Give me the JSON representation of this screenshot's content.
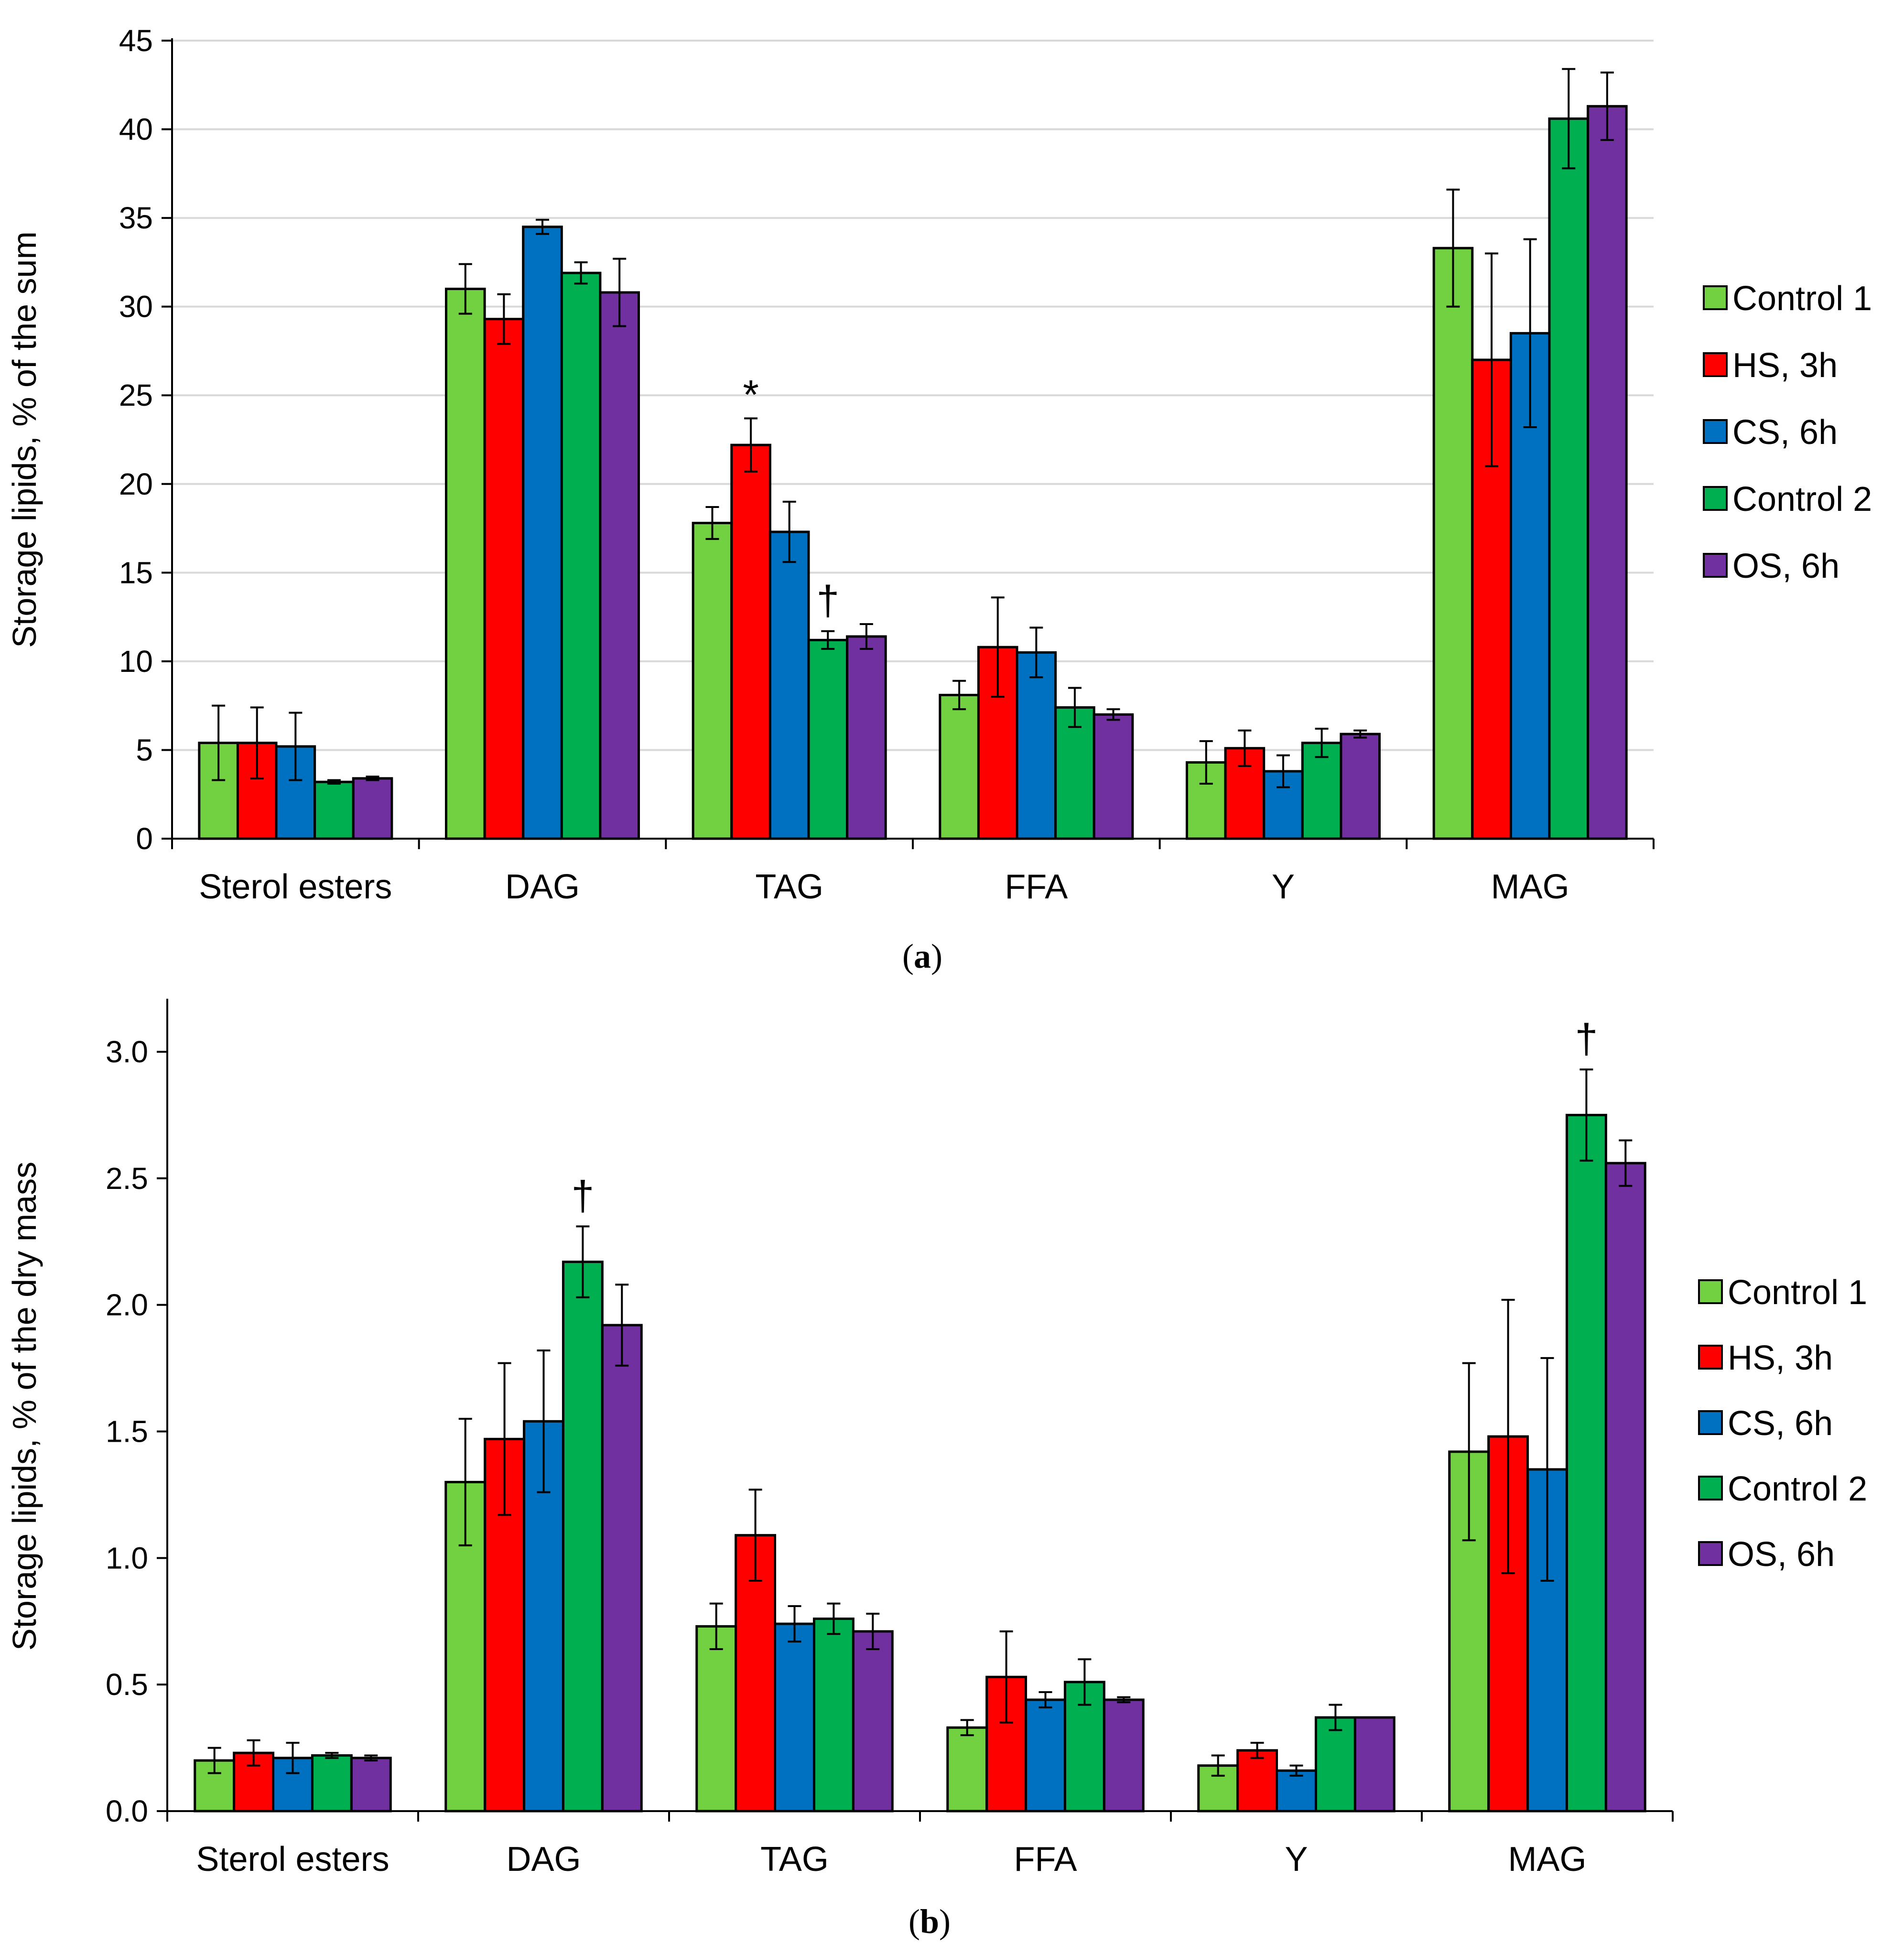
{
  "legend_labels": [
    "Control 1",
    "HS, 3h",
    "CS, 6h",
    "Control 2",
    "OS, 6h"
  ],
  "colors": [
    "#72d140",
    "#ff0000",
    "#0070c0",
    "#00b050",
    "#7030a0"
  ],
  "chart_data": [
    {
      "type": "bar",
      "caption_open": "(",
      "caption_letter": "a",
      "caption_close": ")",
      "ylabel": "Storage lipids, % of the sum",
      "ylim": [
        0,
        45
      ],
      "yticks": [
        "0",
        "5",
        "10",
        "15",
        "20",
        "25",
        "30",
        "35",
        "40",
        "45"
      ],
      "categories": [
        "Sterol esters",
        "DAG",
        "TAG",
        "FFA",
        "Y",
        "MAG"
      ],
      "grid": true,
      "legend_position": "right",
      "series": [
        {
          "name": "Control 1",
          "values": [
            5.4,
            31.0,
            17.8,
            8.1,
            4.3,
            33.3
          ],
          "errors": [
            2.1,
            1.4,
            0.9,
            0.8,
            1.2,
            3.3
          ]
        },
        {
          "name": "HS, 3h",
          "values": [
            5.4,
            29.3,
            22.2,
            10.8,
            5.1,
            27.0
          ],
          "errors": [
            2.0,
            1.4,
            1.5,
            2.8,
            1.0,
            6.0
          ]
        },
        {
          "name": "CS, 6h",
          "values": [
            5.2,
            34.5,
            17.3,
            10.5,
            3.8,
            28.5
          ],
          "errors": [
            1.9,
            0.4,
            1.7,
            1.4,
            0.9,
            5.3
          ]
        },
        {
          "name": "Control 2",
          "values": [
            3.2,
            31.9,
            11.2,
            7.4,
            5.4,
            40.6
          ],
          "errors": [
            0.1,
            0.6,
            0.5,
            1.1,
            0.8,
            2.8
          ]
        },
        {
          "name": "OS, 6h",
          "values": [
            3.4,
            30.8,
            11.4,
            7.0,
            5.9,
            41.3
          ],
          "errors": [
            0.1,
            1.9,
            0.7,
            0.3,
            0.2,
            1.9
          ]
        }
      ],
      "annotations": [
        {
          "text": "*",
          "category": "TAG",
          "series": "HS, 3h"
        },
        {
          "text": "†",
          "category": "TAG",
          "series": "Control 2"
        }
      ]
    },
    {
      "type": "bar",
      "caption_open": "(",
      "caption_letter": "b",
      "caption_close": ")",
      "ylabel": "Storage lipids, % of the dry mass",
      "ylim": [
        0,
        3.0
      ],
      "ymax_axis": 3.2,
      "yticks": [
        "0.0",
        "0.5",
        "1.0",
        "1.5",
        "2.0",
        "2.5",
        "3.0"
      ],
      "categories": [
        "Sterol esters",
        "DAG",
        "TAG",
        "FFA",
        "Y",
        "MAG"
      ],
      "grid": false,
      "legend_position": "right",
      "series": [
        {
          "name": "Control 1",
          "values": [
            0.2,
            1.3,
            0.73,
            0.33,
            0.18,
            1.42
          ],
          "errors": [
            0.05,
            0.25,
            0.09,
            0.03,
            0.04,
            0.35
          ]
        },
        {
          "name": "HS, 3h",
          "values": [
            0.23,
            1.47,
            1.09,
            0.53,
            0.24,
            1.48
          ],
          "errors": [
            0.05,
            0.3,
            0.18,
            0.18,
            0.03,
            0.54
          ]
        },
        {
          "name": "CS, 6h",
          "values": [
            0.21,
            1.54,
            0.74,
            0.44,
            0.16,
            1.35
          ],
          "errors": [
            0.06,
            0.28,
            0.07,
            0.03,
            0.02,
            0.44
          ]
        },
        {
          "name": "Control 2",
          "values": [
            0.22,
            2.17,
            0.76,
            0.51,
            0.37,
            2.75
          ],
          "errors": [
            0.01,
            0.14,
            0.06,
            0.09,
            0.05,
            0.18
          ]
        },
        {
          "name": "OS, 6h",
          "values": [
            0.21,
            1.92,
            0.71,
            0.44,
            0.37,
            2.56
          ],
          "errors": [
            0.01,
            0.16,
            0.07,
            0.01,
            0.0,
            0.09
          ]
        }
      ],
      "annotations": [
        {
          "text": "†",
          "category": "DAG",
          "series": "Control 2"
        },
        {
          "text": "†",
          "category": "MAG",
          "series": "Control 2"
        }
      ]
    }
  ]
}
